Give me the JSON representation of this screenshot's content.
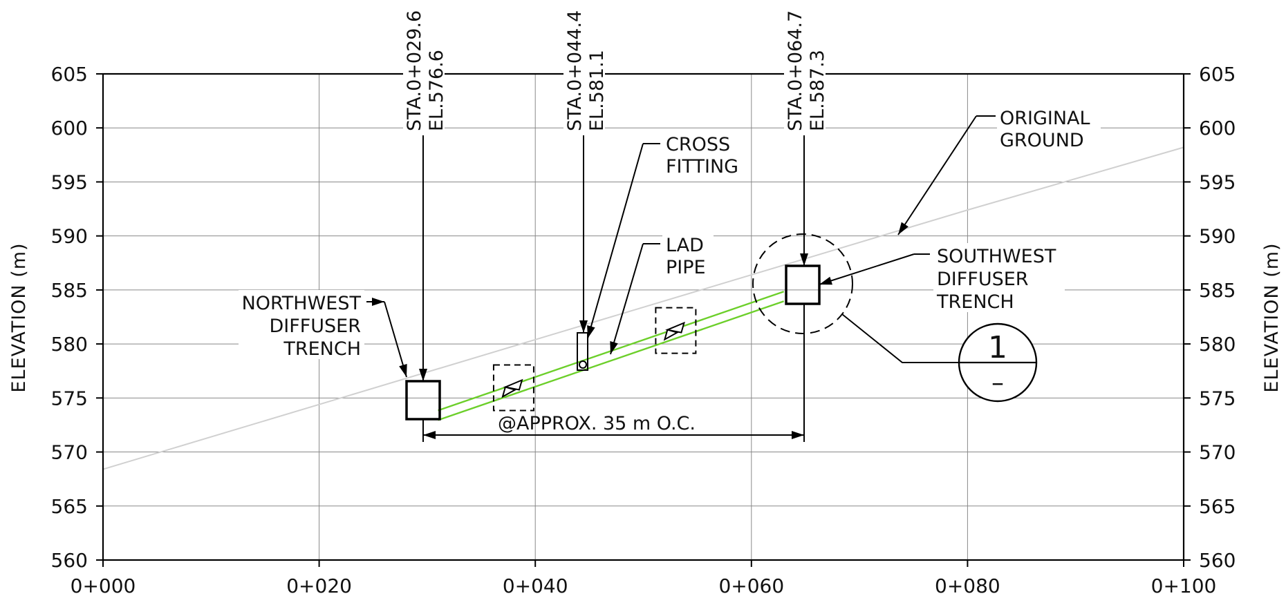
{
  "axes": {
    "x_label": "",
    "y_label_left": "ELEVATION (m)",
    "y_label_right": "ELEVATION (m)",
    "x_ticks": [
      "0+000",
      "0+020",
      "0+040",
      "0+060",
      "0+080",
      "0+100"
    ],
    "y_ticks": [
      "605",
      "600",
      "595",
      "590",
      "585",
      "580",
      "575",
      "570",
      "565",
      "560"
    ]
  },
  "callouts": {
    "sta1": "STA.0+029.6",
    "el1": "EL.576.6",
    "sta2": "STA.0+044.4",
    "el2": "EL.581.1",
    "sta3": "STA.0+064.7",
    "el3": "EL.587.3",
    "cross_fitting": [
      "CROSS",
      "FITTING"
    ],
    "lad_pipe": [
      "LAD",
      "PIPE"
    ],
    "original_ground": [
      "ORIGINAL",
      "GROUND"
    ],
    "northwest_trench": [
      "NORTHWEST",
      "DIFFUSER",
      "TRENCH"
    ],
    "southwest_trench": [
      "SOUTHWEST",
      "DIFFUSER",
      "TRENCH"
    ],
    "spacing": "@APPROX. 35 m O.C.",
    "section_top": "1",
    "section_bottom": "–"
  },
  "chart_data": {
    "type": "profile",
    "x_range": [
      0,
      100
    ],
    "y_range": [
      560,
      605
    ],
    "x_unit": "station (m)",
    "y_unit": "m",
    "grid": true,
    "series": [
      {
        "name": "ORIGINAL GROUND",
        "color": "#d0d0d0",
        "points": [
          [
            0,
            568.4
          ],
          [
            80,
            592.4
          ],
          [
            100,
            598.2
          ]
        ]
      },
      {
        "name": "LAD PIPE",
        "color": "#6ccf2a",
        "points": [
          [
            31,
            573.4
          ],
          [
            63,
            584.4
          ]
        ]
      }
    ],
    "stations": [
      {
        "sta": 29.6,
        "el": 576.6
      },
      {
        "sta": 44.4,
        "el": 581.1
      },
      {
        "sta": 64.7,
        "el": 587.3
      }
    ],
    "valves": [
      [
        38,
        575.5
      ],
      [
        53,
        580.8
      ]
    ],
    "spacing_dimension": [
      29.6,
      64.7
    ]
  }
}
